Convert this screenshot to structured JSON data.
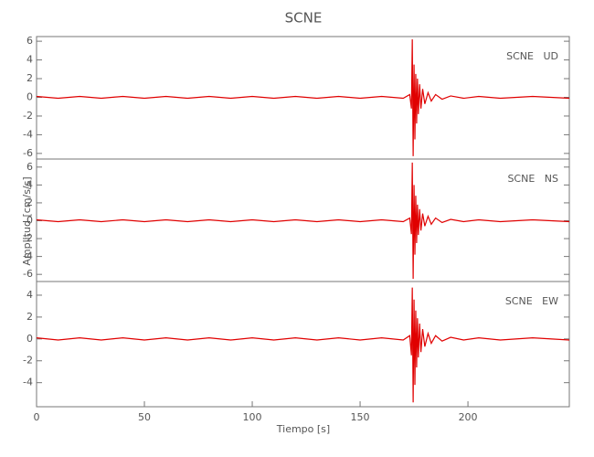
{
  "title": "SCNE",
  "xlabel": "Tiempo [s]",
  "ylabel": "Amplitud [cm/s/s]",
  "chart_data": [
    {
      "type": "line",
      "label": "SCNE   UD",
      "xlim": [
        0,
        247
      ],
      "ylim": [
        -6.6,
        6.5
      ],
      "yticks": [
        -6,
        -4,
        -2,
        0,
        2,
        4,
        6
      ],
      "x": [
        0,
        10,
        20,
        30,
        40,
        50,
        60,
        70,
        80,
        90,
        100,
        110,
        120,
        130,
        140,
        150,
        160,
        170,
        173,
        173.8,
        174.2,
        174.6,
        175,
        175.4,
        175.8,
        176.2,
        176.6,
        177,
        177.6,
        178.2,
        179,
        180,
        181.5,
        183,
        185,
        188,
        192,
        198,
        205,
        215,
        230,
        247
      ],
      "series": [
        {
          "color": "#e00000",
          "values": [
            0.1,
            -0.1,
            0.1,
            -0.1,
            0.1,
            -0.1,
            0.1,
            -0.1,
            0.1,
            -0.1,
            0.1,
            -0.1,
            0.1,
            -0.1,
            0.1,
            -0.1,
            0.1,
            -0.1,
            0.3,
            -1.2,
            6.2,
            -6.3,
            3.5,
            -4.5,
            2.5,
            -2.8,
            2,
            -1.8,
            1.4,
            -1.2,
            0.9,
            -0.7,
            0.5,
            -0.4,
            0.3,
            -0.2,
            0.15,
            -0.1,
            0.1,
            -0.1,
            0.1,
            -0.1
          ]
        }
      ]
    },
    {
      "type": "line",
      "label": "SCNE   NS",
      "xlim": [
        0,
        247
      ],
      "ylim": [
        -6.8,
        6.9
      ],
      "yticks": [
        -6,
        -4,
        -2,
        0,
        2,
        4,
        6
      ],
      "x": [
        0,
        10,
        20,
        30,
        40,
        50,
        60,
        70,
        80,
        90,
        100,
        110,
        120,
        130,
        140,
        150,
        160,
        170,
        173,
        173.8,
        174.2,
        174.6,
        175,
        175.4,
        175.8,
        176.2,
        176.6,
        177,
        177.6,
        178.2,
        179,
        180,
        181.5,
        183,
        185,
        188,
        192,
        198,
        205,
        215,
        230,
        247
      ],
      "series": [
        {
          "color": "#e00000",
          "values": [
            0.1,
            -0.1,
            0.1,
            -0.1,
            0.1,
            -0.1,
            0.1,
            -0.1,
            0.1,
            -0.1,
            0.1,
            -0.1,
            0.1,
            -0.1,
            0.1,
            -0.1,
            0.1,
            -0.1,
            0.3,
            -1.5,
            6.5,
            -6.5,
            4,
            -3.8,
            2.8,
            -2.5,
            1.8,
            -1.6,
            1.3,
            -1.1,
            0.8,
            -0.6,
            0.5,
            -0.4,
            0.3,
            -0.2,
            0.15,
            -0.1,
            0.1,
            -0.1,
            0.1,
            -0.1
          ]
        }
      ]
    },
    {
      "type": "line",
      "label": "SCNE   EW",
      "xlim": [
        0,
        247
      ],
      "ylim": [
        -6.2,
        5.25
      ],
      "yticks": [
        -4,
        -2,
        0,
        2,
        4
      ],
      "xticks": [
        0,
        50,
        100,
        150,
        200
      ],
      "x": [
        0,
        10,
        20,
        30,
        40,
        50,
        60,
        70,
        80,
        90,
        100,
        110,
        120,
        130,
        140,
        150,
        160,
        170,
        173,
        173.8,
        174.2,
        174.6,
        175,
        175.4,
        175.8,
        176.2,
        176.6,
        177,
        177.6,
        178.2,
        179,
        180,
        181.5,
        183,
        185,
        188,
        192,
        198,
        205,
        215,
        230,
        247
      ],
      "series": [
        {
          "color": "#e00000",
          "values": [
            0.1,
            -0.1,
            0.1,
            -0.1,
            0.1,
            -0.1,
            0.1,
            -0.1,
            0.1,
            -0.1,
            0.1,
            -0.1,
            0.1,
            -0.1,
            0.1,
            -0.1,
            0.1,
            -0.1,
            0.3,
            -1.5,
            4.7,
            -5.8,
            3.6,
            -4.2,
            2.6,
            -2.6,
            1.9,
            -1.7,
            1.4,
            -1.2,
            0.9,
            -0.7,
            0.5,
            -0.4,
            0.3,
            -0.2,
            0.15,
            -0.1,
            0.1,
            -0.1,
            0.1,
            -0.1
          ]
        }
      ]
    }
  ]
}
